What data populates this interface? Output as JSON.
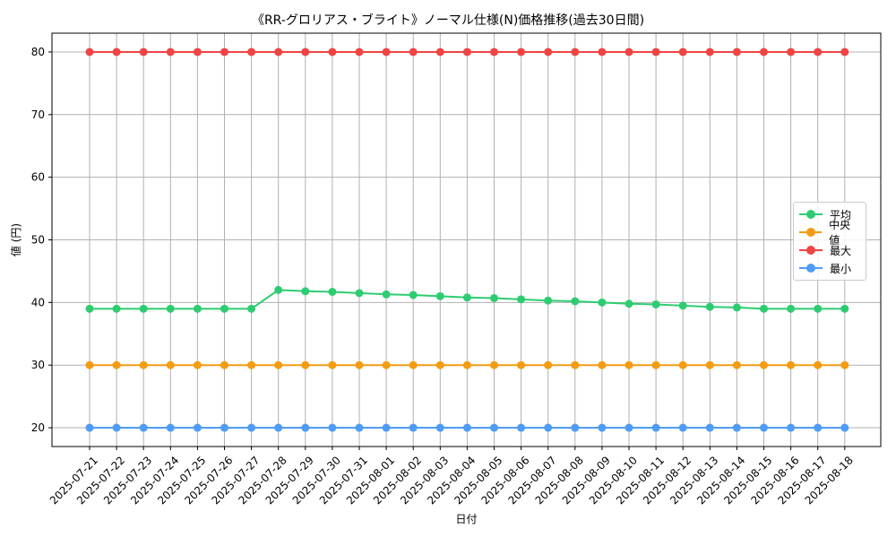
{
  "chart_data": {
    "type": "line",
    "title": "《RR-グロリアス・ブライト》ノーマル仕様(N)価格推移(過去30日間)",
    "xlabel": "日付",
    "ylabel": "値 (円)",
    "ylim": [
      17,
      83
    ],
    "yticks": [
      20,
      30,
      40,
      50,
      60,
      70,
      80
    ],
    "grid": true,
    "legend_position": "center-right",
    "categories": [
      "2025-07-21",
      "2025-07-22",
      "2025-07-23",
      "2025-07-24",
      "2025-07-25",
      "2025-07-26",
      "2025-07-27",
      "2025-07-28",
      "2025-07-29",
      "2025-07-30",
      "2025-07-31",
      "2025-08-01",
      "2025-08-02",
      "2025-08-03",
      "2025-08-04",
      "2025-08-05",
      "2025-08-06",
      "2025-08-07",
      "2025-08-08",
      "2025-08-09",
      "2025-08-10",
      "2025-08-11",
      "2025-08-12",
      "2025-08-13",
      "2025-08-14",
      "2025-08-15",
      "2025-08-16",
      "2025-08-17",
      "2025-08-18"
    ],
    "series": [
      {
        "name": "平均",
        "color": "#2ecc71",
        "values": [
          39,
          39,
          39,
          39,
          39,
          39,
          39,
          42,
          41.8,
          41.7,
          41.5,
          41.3,
          41.2,
          41,
          40.8,
          40.7,
          40.5,
          40.3,
          40.2,
          40,
          39.8,
          39.7,
          39.5,
          39.3,
          39.2,
          39,
          39,
          39,
          39
        ]
      },
      {
        "name": "中央値",
        "color": "#f39c12",
        "values": [
          30,
          30,
          30,
          30,
          30,
          30,
          30,
          30,
          30,
          30,
          30,
          30,
          30,
          30,
          30,
          30,
          30,
          30,
          30,
          30,
          30,
          30,
          30,
          30,
          30,
          30,
          30,
          30,
          30
        ]
      },
      {
        "name": "最大",
        "color": "#ef4444",
        "values": [
          80,
          80,
          80,
          80,
          80,
          80,
          80,
          80,
          80,
          80,
          80,
          80,
          80,
          80,
          80,
          80,
          80,
          80,
          80,
          80,
          80,
          80,
          80,
          80,
          80,
          80,
          80,
          80,
          80
        ]
      },
      {
        "name": "最小",
        "color": "#4e9cf5",
        "values": [
          20,
          20,
          20,
          20,
          20,
          20,
          20,
          20,
          20,
          20,
          20,
          20,
          20,
          20,
          20,
          20,
          20,
          20,
          20,
          20,
          20,
          20,
          20,
          20,
          20,
          20,
          20,
          20,
          20
        ]
      }
    ]
  }
}
